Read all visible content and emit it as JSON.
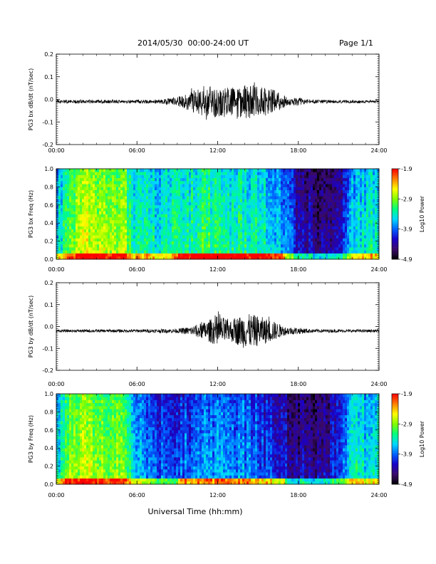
{
  "header": {
    "date_range": "2014/05/30  00:00-24:00 UT",
    "page": "Page 1/1"
  },
  "x_axis": {
    "label": "Universal Time (hh:mm)",
    "ticks": [
      "00:00",
      "06:00",
      "12:00",
      "18:00",
      "24:00"
    ],
    "range_hours": [
      0,
      24
    ]
  },
  "colorbar": {
    "label": "Log10 Power",
    "ticks": [
      "-1.9",
      "-2.9",
      "-3.9",
      "-4.9"
    ],
    "range": [
      -4.9,
      -1.9
    ]
  },
  "chart_data": [
    {
      "type": "line",
      "ylabel": "PG3 bx dB/dt (nT/sec)",
      "ylim": [
        -0.2,
        0.2
      ],
      "yticks": [
        "0.2",
        "0.1",
        "0.0",
        "-0.1",
        "-0.2"
      ],
      "baseline": -0.01,
      "color": "#000000",
      "amplitude_envelope": {
        "x_hours": [
          0,
          6,
          8,
          9.5,
          10.5,
          12,
          13,
          14,
          15,
          16,
          16.8,
          17.5,
          18,
          18.5,
          19,
          24
        ],
        "amplitude": [
          0.008,
          0.008,
          0.01,
          0.03,
          0.06,
          0.07,
          0.06,
          0.075,
          0.07,
          0.06,
          0.03,
          0.015,
          0.02,
          0.01,
          0.008,
          0.006
        ]
      }
    },
    {
      "type": "heatmap",
      "ylabel": "PG3 bx Freq (Hz)",
      "ylim": [
        0.0,
        1.0
      ],
      "yticks": [
        "1.0",
        "0.8",
        "0.6",
        "0.4",
        "0.2",
        "0.0"
      ],
      "value_label": "Log10 Power",
      "value_range": [
        -4.9,
        -1.9
      ],
      "colormap": [
        "#000000",
        "#3a0a6a",
        "#1a00c8",
        "#0060ff",
        "#00d8ff",
        "#00ff80",
        "#80ff00",
        "#ffff00",
        "#ff8000",
        "#ff0000"
      ],
      "time_profile": {
        "x_hours": [
          0,
          1,
          2,
          3,
          4,
          5,
          6,
          7,
          8,
          9,
          10,
          11,
          12,
          13,
          14,
          15,
          16,
          17,
          18,
          19,
          20,
          21,
          22,
          23,
          24
        ],
        "log_power": [
          -3.8,
          -3.2,
          -2.9,
          -3.0,
          -3.0,
          -3.0,
          -3.6,
          -3.6,
          -3.6,
          -3.5,
          -3.5,
          -3.4,
          -3.4,
          -3.5,
          -3.5,
          -3.5,
          -3.8,
          -3.9,
          -4.5,
          -4.6,
          -4.6,
          -4.6,
          -3.8,
          -3.6,
          -3.6
        ]
      }
    },
    {
      "type": "line",
      "ylabel": "PG3 by dB/dt (nT/sec)",
      "ylim": [
        -0.2,
        0.2
      ],
      "yticks": [
        "0.2",
        "0.1",
        "0.0",
        "-0.1",
        "-0.2"
      ],
      "baseline": -0.02,
      "color": "#000000",
      "amplitude_envelope": {
        "x_hours": [
          0,
          6,
          9,
          10,
          11,
          12,
          13,
          14,
          15,
          16,
          17,
          18,
          19,
          24
        ],
        "amplitude": [
          0.006,
          0.007,
          0.01,
          0.02,
          0.04,
          0.07,
          0.05,
          0.08,
          0.07,
          0.05,
          0.02,
          0.015,
          0.008,
          0.006
        ]
      }
    },
    {
      "type": "heatmap",
      "ylabel": "PG3 by Freq (Hz)",
      "ylim": [
        0.0,
        1.0
      ],
      "yticks": [
        "1.0",
        "0.8",
        "0.6",
        "0.4",
        "0.2",
        "0.0"
      ],
      "value_label": "Log10 Power",
      "value_range": [
        -4.9,
        -1.9
      ],
      "colormap": [
        "#000000",
        "#3a0a6a",
        "#1a00c8",
        "#0060ff",
        "#00d8ff",
        "#00ff80",
        "#80ff00",
        "#ffff00",
        "#ff8000",
        "#ff0000"
      ],
      "time_profile": {
        "x_hours": [
          0,
          1,
          2,
          3,
          4,
          5,
          6,
          7,
          8,
          9,
          10,
          11,
          12,
          13,
          14,
          15,
          16,
          17,
          18,
          19,
          20,
          21,
          22,
          23,
          24
        ],
        "log_power": [
          -3.7,
          -3.1,
          -3.0,
          -3.1,
          -3.1,
          -3.0,
          -3.8,
          -4.1,
          -4.2,
          -4.1,
          -4.1,
          -3.9,
          -3.9,
          -4.0,
          -4.0,
          -4.1,
          -4.3,
          -4.4,
          -4.6,
          -4.6,
          -4.6,
          -4.3,
          -3.6,
          -3.7,
          -3.7
        ]
      }
    }
  ]
}
